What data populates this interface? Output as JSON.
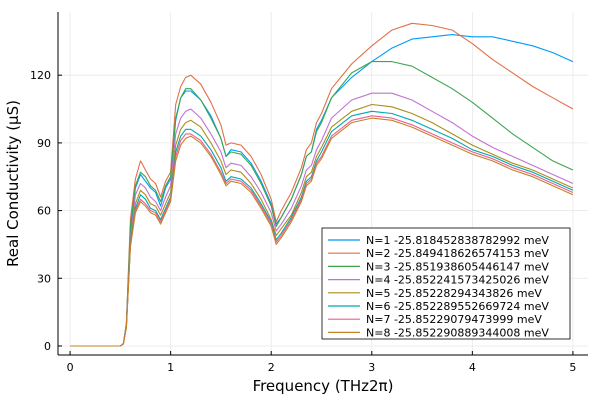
{
  "chart_data": {
    "type": "line",
    "xlabel": "Frequency (THz2π)",
    "ylabel": "Real Conductivity (μS)",
    "xlim": [
      -0.12,
      5.15
    ],
    "ylim": [
      -4,
      148
    ],
    "xticks": [
      0,
      1,
      2,
      3,
      4,
      5
    ],
    "yticks": [
      0,
      30,
      60,
      90,
      120
    ],
    "grid": true,
    "legend_position": "bottom-right",
    "x": [
      0,
      0.5,
      0.53,
      0.56,
      0.6,
      0.65,
      0.7,
      0.75,
      0.8,
      0.85,
      0.9,
      0.95,
      1.0,
      1.05,
      1.1,
      1.15,
      1.2,
      1.3,
      1.4,
      1.5,
      1.55,
      1.6,
      1.7,
      1.8,
      1.9,
      2.0,
      2.05,
      2.1,
      2.2,
      2.3,
      2.35,
      2.4,
      2.45,
      2.5,
      2.6,
      2.8,
      3.0,
      3.2,
      3.4,
      3.6,
      3.8,
      4.0,
      4.2,
      4.4,
      4.6,
      4.8,
      5.0
    ],
    "series": [
      {
        "name": "N=1 -25.818452838782992 meV",
        "color": "#009AFA",
        "values": [
          0,
          0,
          1,
          10,
          50,
          70,
          76,
          73,
          70,
          68,
          62,
          70,
          74,
          100,
          110,
          113,
          113,
          109,
          102,
          92,
          84,
          87,
          86,
          81,
          73,
          63,
          54,
          57,
          65,
          76,
          84,
          86,
          96,
          100,
          110,
          119,
          126,
          132,
          136,
          137,
          138,
          137,
          137,
          135,
          133,
          130,
          126
        ]
      },
      {
        "name": "N=2 -25.849418626574153 meV",
        "color": "#E36F47",
        "values": [
          0,
          0,
          1,
          10,
          56,
          74,
          82,
          78,
          74,
          72,
          66,
          73,
          77,
          107,
          115,
          119,
          120,
          116,
          108,
          98,
          89,
          90,
          89,
          84,
          76,
          65,
          55,
          60,
          68,
          79,
          87,
          90,
          99,
          103,
          114,
          125,
          133,
          140,
          143,
          142,
          140,
          134,
          127,
          121,
          115,
          110,
          105
        ]
      },
      {
        "name": "N=3 -25.851938605446147 meV",
        "color": "#3EA44E",
        "values": [
          0,
          0,
          1,
          10,
          53,
          71,
          77,
          75,
          71,
          69,
          64,
          71,
          75,
          101,
          110,
          114,
          114,
          109,
          101,
          92,
          84,
          86,
          85,
          80,
          72,
          62,
          53,
          57,
          65,
          76,
          84,
          86,
          95,
          99,
          110,
          121,
          126,
          126,
          124,
          119,
          114,
          108,
          101,
          94,
          88,
          82,
          78
        ]
      },
      {
        "name": "N=4 -25.852241573425026 meV",
        "color": "#C371D2",
        "values": [
          0,
          0,
          1,
          9,
          47,
          67,
          72,
          70,
          66,
          64,
          60,
          66,
          71,
          94,
          101,
          104,
          105,
          101,
          94,
          86,
          79,
          81,
          80,
          75,
          68,
          59,
          51,
          54,
          61,
          71,
          78,
          80,
          87,
          91,
          101,
          109,
          112,
          112,
          109,
          104,
          99,
          93,
          88,
          84,
          80,
          76,
          72
        ]
      },
      {
        "name": "N=5 -25.85228294343826 meV",
        "color": "#AC8D19",
        "values": [
          0,
          0,
          1,
          9,
          46,
          63,
          69,
          67,
          63,
          62,
          58,
          63,
          68,
          89,
          96,
          99,
          100,
          97,
          90,
          82,
          76,
          78,
          77,
          72,
          65,
          56,
          49,
          52,
          58,
          68,
          75,
          77,
          84,
          88,
          97,
          104,
          107,
          106,
          103,
          99,
          94,
          89,
          85,
          81,
          78,
          74,
          70
        ]
      },
      {
        "name": "N=6 -25.852289552669724 meV",
        "color": "#00A9AE",
        "values": [
          0,
          0,
          1,
          9,
          45,
          61,
          67,
          65,
          61,
          60,
          56,
          61,
          66,
          86,
          93,
          96,
          96,
          93,
          87,
          79,
          73,
          75,
          74,
          70,
          63,
          55,
          47,
          50,
          57,
          66,
          73,
          75,
          82,
          86,
          95,
          102,
          104,
          103,
          100,
          96,
          92,
          87,
          84,
          80,
          77,
          73,
          69
        ]
      },
      {
        "name": "N=7 -25.85229079473999 meV",
        "color": "#ED5D93",
        "values": [
          0,
          0,
          1,
          9,
          44,
          60,
          65,
          63,
          60,
          59,
          55,
          60,
          65,
          84,
          91,
          94,
          94,
          91,
          85,
          77,
          72,
          74,
          73,
          69,
          62,
          54,
          46,
          49,
          56,
          65,
          72,
          74,
          81,
          84,
          93,
          100,
          102,
          101,
          98,
          94,
          90,
          86,
          83,
          79,
          76,
          72,
          68
        ]
      },
      {
        "name": "N=8 -25.852290889344008 meV",
        "color": "#C68226",
        "values": [
          0,
          0,
          1,
          8,
          44,
          59,
          64,
          62,
          59,
          58,
          54,
          59,
          64,
          82,
          89,
          92,
          93,
          90,
          84,
          76,
          71,
          73,
          72,
          68,
          61,
          53,
          45,
          48,
          55,
          64,
          71,
          73,
          80,
          83,
          92,
          99,
          101,
          100,
          97,
          93,
          89,
          85,
          82,
          78,
          75,
          71,
          67
        ]
      }
    ]
  }
}
